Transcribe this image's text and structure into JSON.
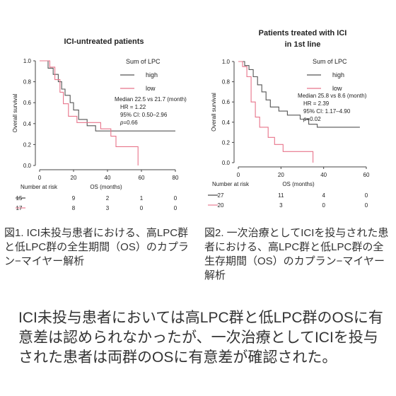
{
  "chart_data": [
    {
      "type": "line",
      "title": "ICI-untreated patients",
      "xlabel": "OS (months)",
      "ylabel": "Overall survival",
      "xlim": [
        0,
        80
      ],
      "ylim": [
        0,
        1.0
      ],
      "xticks": [
        "0",
        "20",
        "40",
        "60",
        "80"
      ],
      "yticks": [
        "0.0",
        "0.2",
        "0.4",
        "0.6",
        "0.8",
        "1.0"
      ],
      "legend": {
        "title": "Sum of LPC",
        "position": "top-right"
      },
      "series": [
        {
          "name": "high",
          "color": "#555555",
          "points": [
            [
              0,
              1.0
            ],
            [
              5,
              1.0
            ],
            [
              5,
              0.93
            ],
            [
              8,
              0.93
            ],
            [
              8,
              0.87
            ],
            [
              11,
              0.87
            ],
            [
              11,
              0.8
            ],
            [
              13,
              0.8
            ],
            [
              13,
              0.73
            ],
            [
              15,
              0.73
            ],
            [
              15,
              0.67
            ],
            [
              18,
              0.67
            ],
            [
              18,
              0.6
            ],
            [
              20,
              0.6
            ],
            [
              20,
              0.53
            ],
            [
              23,
              0.53
            ],
            [
              23,
              0.44
            ],
            [
              28,
              0.44
            ],
            [
              28,
              0.38
            ],
            [
              33,
              0.38
            ],
            [
              33,
              0.33
            ],
            [
              80,
              0.33
            ]
          ]
        },
        {
          "name": "low",
          "color": "#e8748a",
          "points": [
            [
              0,
              1.0
            ],
            [
              6,
              1.0
            ],
            [
              6,
              0.94
            ],
            [
              9,
              0.94
            ],
            [
              9,
              0.82
            ],
            [
              12,
              0.82
            ],
            [
              12,
              0.7
            ],
            [
              14,
              0.7
            ],
            [
              14,
              0.59
            ],
            [
              17,
              0.59
            ],
            [
              17,
              0.47
            ],
            [
              22,
              0.47
            ],
            [
              22,
              0.41
            ],
            [
              36,
              0.41
            ],
            [
              36,
              0.35
            ],
            [
              42,
              0.35
            ],
            [
              42,
              0.28
            ],
            [
              45,
              0.28
            ],
            [
              45,
              0.18
            ],
            [
              58,
              0.18
            ],
            [
              58,
              0.0
            ]
          ]
        }
      ],
      "annotations": [
        "Median 22.5 vs 21.7 (month)",
        "HR = 1.22",
        "95% CI: 0.50–2.96",
        "p=0.66"
      ],
      "risk_table": {
        "label": "Number at risk",
        "rows": [
          {
            "color": "#333333",
            "values": [
              "15",
              "9",
              "2",
              "1",
              "0"
            ]
          },
          {
            "color": "#e8748a",
            "values": [
              "17",
              "8",
              "3",
              "0",
              "0"
            ]
          }
        ]
      }
    },
    {
      "type": "line",
      "title": "Patients treated with ICI",
      "title_line2": "in 1st line",
      "xlabel": "OS (months)",
      "ylabel": "Overall survival",
      "xlim": [
        0,
        60
      ],
      "ylim": [
        0,
        1.0
      ],
      "xticks": [
        "0",
        "20",
        "40",
        "60"
      ],
      "yticks": [
        "0.0",
        "0.2",
        "0.4",
        "0.6",
        "0.8",
        "1.0"
      ],
      "legend": {
        "title": "Sum of LPC",
        "position": "top-right"
      },
      "series": [
        {
          "name": "high",
          "color": "#555555",
          "points": [
            [
              0,
              1.0
            ],
            [
              3,
              1.0
            ],
            [
              3,
              0.96
            ],
            [
              5,
              0.96
            ],
            [
              5,
              0.92
            ],
            [
              7,
              0.92
            ],
            [
              7,
              0.85
            ],
            [
              9,
              0.85
            ],
            [
              9,
              0.77
            ],
            [
              11,
              0.77
            ],
            [
              11,
              0.7
            ],
            [
              13,
              0.7
            ],
            [
              13,
              0.62
            ],
            [
              15,
              0.62
            ],
            [
              15,
              0.55
            ],
            [
              19,
              0.55
            ],
            [
              19,
              0.51
            ],
            [
              23,
              0.51
            ],
            [
              23,
              0.47
            ],
            [
              29,
              0.47
            ],
            [
              29,
              0.43
            ],
            [
              33,
              0.43
            ],
            [
              33,
              0.38
            ],
            [
              37,
              0.38
            ],
            [
              37,
              0.35
            ],
            [
              57,
              0.35
            ]
          ]
        },
        {
          "name": "low",
          "color": "#e8748a",
          "points": [
            [
              0,
              1.0
            ],
            [
              2,
              1.0
            ],
            [
              2,
              0.95
            ],
            [
              4,
              0.95
            ],
            [
              4,
              0.85
            ],
            [
              6,
              0.85
            ],
            [
              6,
              0.6
            ],
            [
              8,
              0.6
            ],
            [
              8,
              0.45
            ],
            [
              10,
              0.45
            ],
            [
              10,
              0.35
            ],
            [
              14,
              0.35
            ],
            [
              14,
              0.25
            ],
            [
              17,
              0.25
            ],
            [
              17,
              0.18
            ],
            [
              21,
              0.18
            ],
            [
              21,
              0.11
            ],
            [
              35,
              0.11
            ],
            [
              35,
              0.0
            ]
          ]
        }
      ],
      "annotations": [
        "Median 25.8 vs 8.6 (month)",
        "HR = 2.39",
        "95% CI: 1.17–4.90",
        "p=0.02"
      ],
      "risk_table": {
        "label": "Number at risk",
        "rows": [
          {
            "color": "#333333",
            "values": [
              "27",
              "11",
              "4",
              "0"
            ]
          },
          {
            "color": "#e8748a",
            "values": [
              "20",
              "3",
              "0",
              "0"
            ]
          }
        ]
      }
    }
  ],
  "captions": {
    "fig1": "図1. ICI未投与患者における、高LPC群と低LPC群の全生期間（OS）のカプラン−マイヤー解析",
    "fig2": "図2. 一次治療としてICIを投与された患者における、高LPC群と低LPC群の全生存期間（OS）のカプラン−マイヤー解析"
  },
  "summary": "ICI未投与患者においては高LPC群と低LPC群のOSに有意差は認められなかったが、一次治療としてICIを投与された患者は両群のOSに有意差が確認された。"
}
